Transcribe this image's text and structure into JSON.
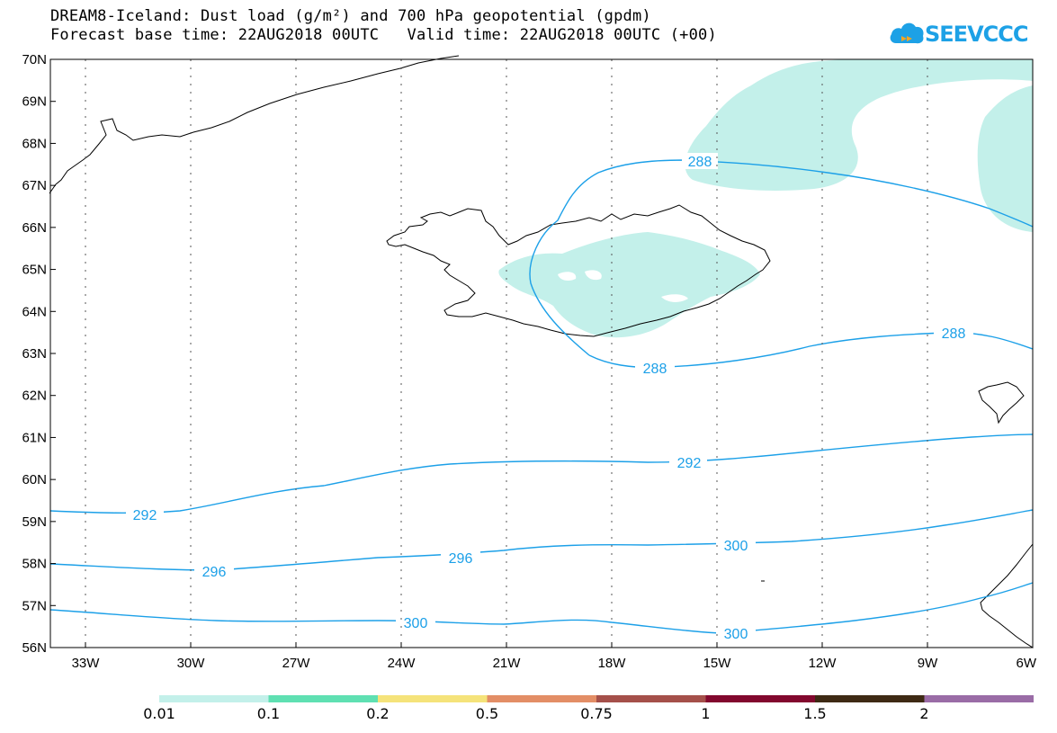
{
  "header": {
    "title_line1": "DREAM8-Iceland: Dust load (g/m²) and 700 hPa geopotential (gpdm)",
    "title_line2": "Forecast base time: 22AUG2018 00UTC   Valid time: 22AUG2018 00UTC (+00)"
  },
  "logo": {
    "text": "SEEVCCC",
    "icon": "cloud-icon",
    "color": "#1da1e6"
  },
  "map": {
    "lat_labels": [
      "70N",
      "69N",
      "68N",
      "67N",
      "66N",
      "65N",
      "64N",
      "63N",
      "62N",
      "61N",
      "60N",
      "59N",
      "58N",
      "57N",
      "56N"
    ],
    "lon_labels": [
      "33W",
      "30W",
      "27W",
      "24W",
      "21W",
      "18W",
      "15W",
      "12W",
      "9W",
      "6W"
    ],
    "contour_labels": [
      "288",
      "288",
      "288",
      "292",
      "292",
      "296",
      "296",
      "300",
      "300"
    ],
    "contour_color": "#1ca0e8",
    "dust_color": "#c3f0ea"
  },
  "legend": {
    "thresholds": [
      "0.01",
      "0.1",
      "0.2",
      "0.5",
      "0.75",
      "1",
      "1.5",
      "2"
    ],
    "colors": [
      "#c3f0ea",
      "#5fe0b2",
      "#f5e37a",
      "#e38e66",
      "#a5504a",
      "#82082e",
      "#3e2a14",
      "#9a6ca6"
    ]
  }
}
